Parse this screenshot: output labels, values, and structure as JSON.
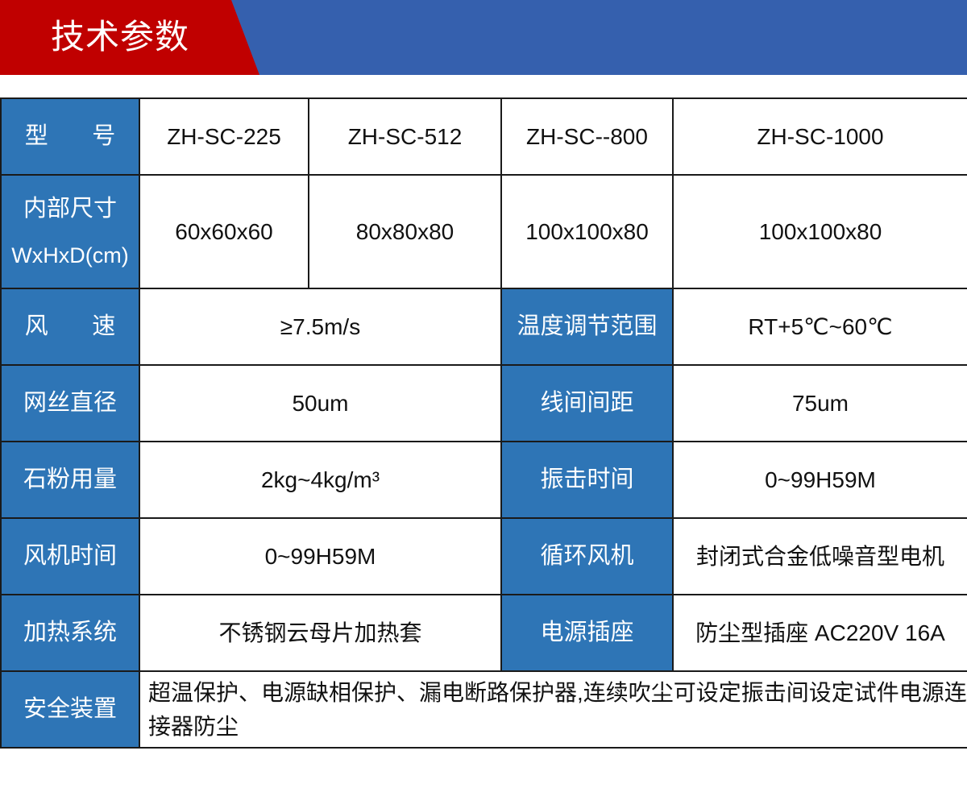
{
  "banner": {
    "title": "技术参数",
    "colors": {
      "red": "#c00000",
      "blue": "#3560ae"
    }
  },
  "colors": {
    "header_cell": "#2e75b6"
  },
  "table": {
    "model": {
      "label": "型 号",
      "values": [
        "ZH-SC-225",
        "ZH-SC-512",
        "ZH-SC--800",
        "ZH-SC-1000"
      ]
    },
    "inner_size": {
      "label": "内部尺寸",
      "unit": "WxHxD(cm)",
      "values": [
        "60x60x60",
        "80x80x80",
        "100x100x80",
        "100x100x80"
      ]
    },
    "wind_speed": {
      "label": "风 速",
      "value": "≥7.5m/s"
    },
    "temp_range": {
      "label": "温度调节范围",
      "value": "RT+5℃~60℃"
    },
    "wire_diameter": {
      "label": "网丝直径",
      "value": "50um"
    },
    "wire_spacing": {
      "label": "线间间距",
      "value": "75um"
    },
    "powder": {
      "label": "石粉用量",
      "value": "2kg~4kg/m³"
    },
    "vibration_time": {
      "label": "振击时间",
      "value": "0~99H59M"
    },
    "fan_time": {
      "label": "风机时间",
      "value": "0~99H59M"
    },
    "circulation_fan": {
      "label": "循环风机",
      "value": "封闭式合金低噪音型电机"
    },
    "heating": {
      "label": "加热系统",
      "value": "不锈钢云母片加热套"
    },
    "power_socket": {
      "label": "电源插座",
      "value": "防尘型插座 AC220V 16A"
    },
    "safety": {
      "label": "安全装置",
      "value": "超温保护、电源缺相保护、漏电断路保护器,连续吹尘可设定振击间设定试件电源连接器防尘"
    }
  }
}
